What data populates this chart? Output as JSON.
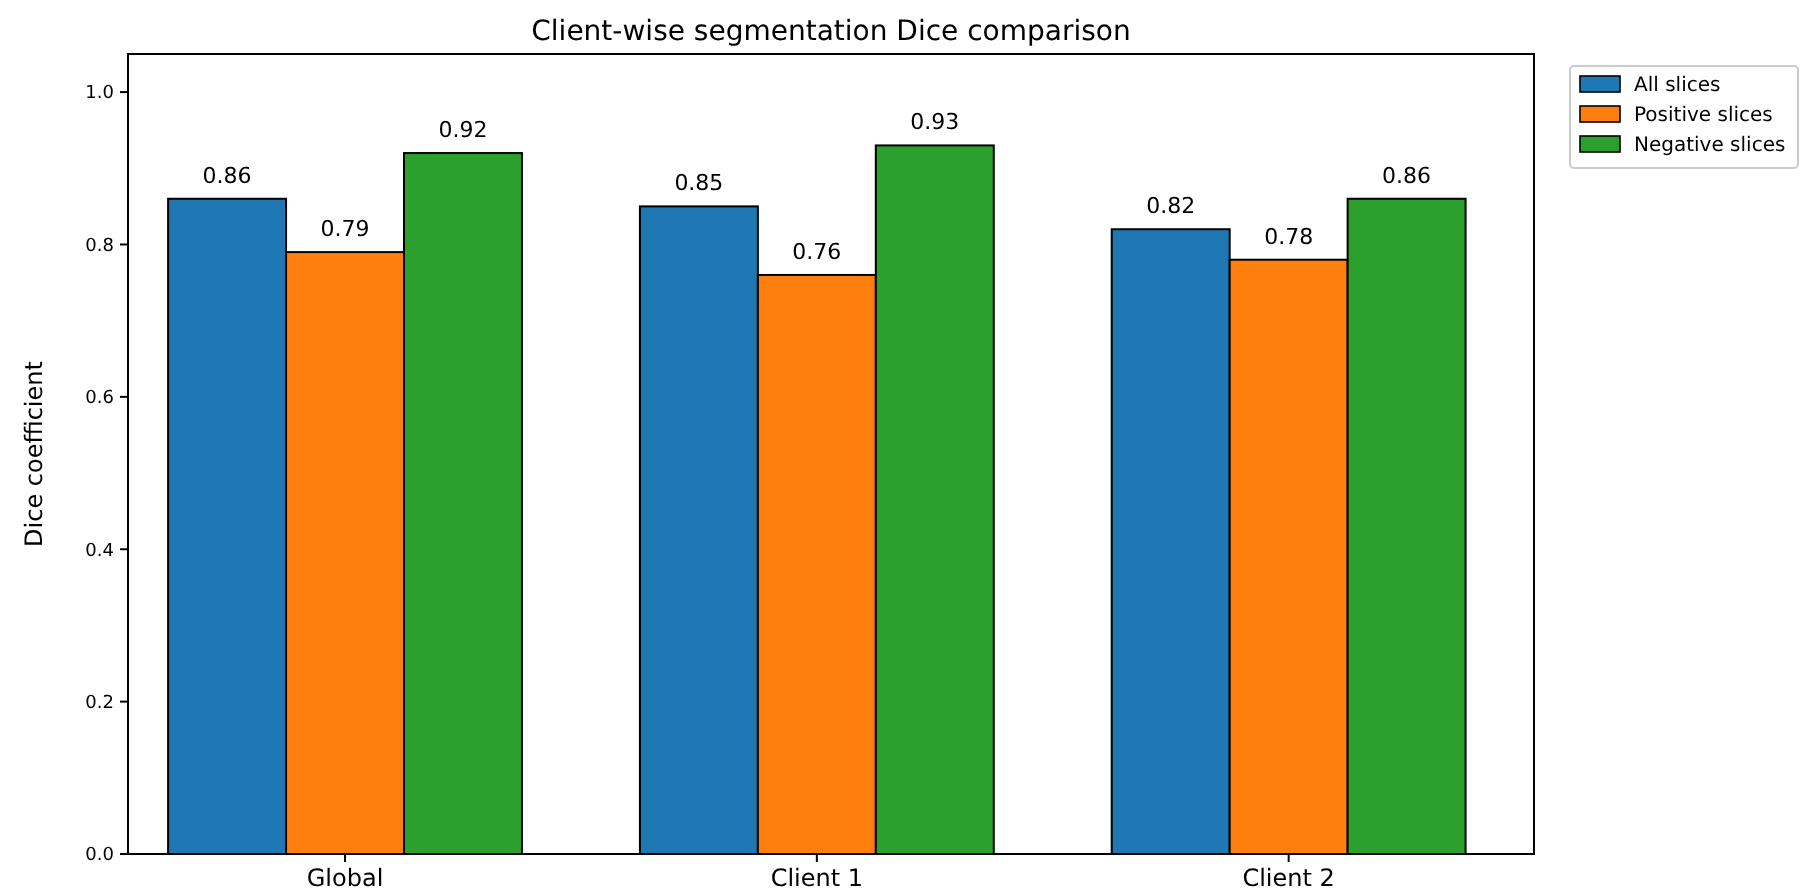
{
  "chart_data": {
    "type": "bar",
    "title": "Client-wise segmentation Dice comparison",
    "ylabel": "Dice coefficient",
    "categories": [
      "Global",
      "Client 1",
      "Client 2"
    ],
    "series": [
      {
        "name": "All slices",
        "color": "#1f77b4",
        "values": [
          0.86,
          0.85,
          0.82
        ]
      },
      {
        "name": "Positive slices",
        "color": "#ff7f0e",
        "values": [
          0.79,
          0.76,
          0.78
        ]
      },
      {
        "name": "Negative slices",
        "color": "#2ca02c",
        "values": [
          0.92,
          0.93,
          0.86
        ]
      }
    ],
    "ylim": [
      0,
      1.05
    ],
    "yticks": [
      {
        "value": 0,
        "label": "0.0"
      },
      {
        "value": 0.2,
        "label": "0.2"
      },
      {
        "value": 0.4,
        "label": "0.4"
      },
      {
        "value": 0.6,
        "label": "0.6"
      },
      {
        "value": 0.8,
        "label": "0.8"
      },
      {
        "value": 1,
        "label": "1.0"
      }
    ],
    "data_labels": true,
    "legend": "top right",
    "grid": false
  }
}
